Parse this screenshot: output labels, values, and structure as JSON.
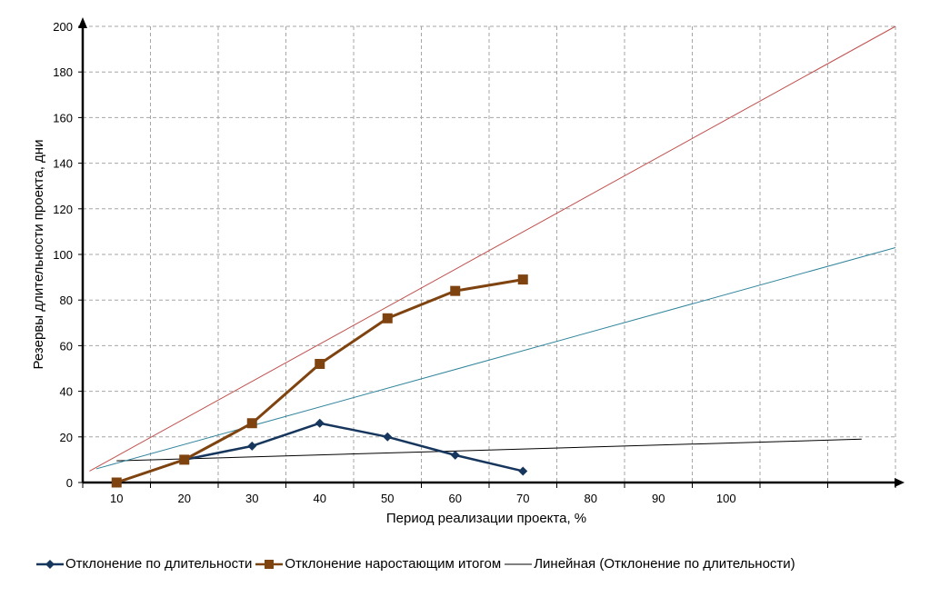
{
  "chart_data": {
    "type": "line",
    "title": "",
    "xlabel": "Период реализации проекта, %",
    "ylabel": "Резервы длительности проекта,  дни",
    "x_tick_labels": [
      "10",
      "20",
      "30",
      "40",
      "50",
      "60",
      "70",
      "80",
      "90",
      "100"
    ],
    "y_tick_labels": [
      "0",
      "20",
      "40",
      "60",
      "80",
      "100",
      "120",
      "140",
      "160",
      "180",
      "200"
    ],
    "ylim": [
      0,
      200
    ],
    "grid": true,
    "legend_position": "bottom",
    "series": [
      {
        "name": "Отклонение  по длительности",
        "color": "#17365d",
        "marker": "diamond",
        "x": [
          10,
          20,
          30,
          40,
          50,
          60,
          70
        ],
        "y": [
          0,
          10,
          16,
          26,
          20,
          12,
          5
        ]
      },
      {
        "name": "Отклонение  наростающим итогом",
        "color": "#7f4310",
        "marker": "square",
        "x": [
          10,
          20,
          30,
          40,
          50,
          60,
          70
        ],
        "y": [
          0,
          10,
          26,
          52,
          72,
          84,
          89
        ]
      }
    ],
    "trendlines": [
      {
        "name": "Линейная  (Отклонение  по длительности)",
        "color": "#000000",
        "show_in_legend": true,
        "from": [
          10,
          9.5
        ],
        "to": [
          120,
          19
        ]
      },
      {
        "color": "#c0504d",
        "show_in_legend": false,
        "from": [
          6,
          5
        ],
        "to": [
          125,
          200
        ]
      },
      {
        "color": "#31859c",
        "show_in_legend": false,
        "from": [
          7,
          6
        ],
        "to": [
          125,
          103
        ]
      }
    ]
  },
  "legend": {
    "item1": "Отклонение  по длительности",
    "item2": "Отклонение  наростающим итогом",
    "item3": "Линейная  (Отклонение  по длительности)"
  }
}
